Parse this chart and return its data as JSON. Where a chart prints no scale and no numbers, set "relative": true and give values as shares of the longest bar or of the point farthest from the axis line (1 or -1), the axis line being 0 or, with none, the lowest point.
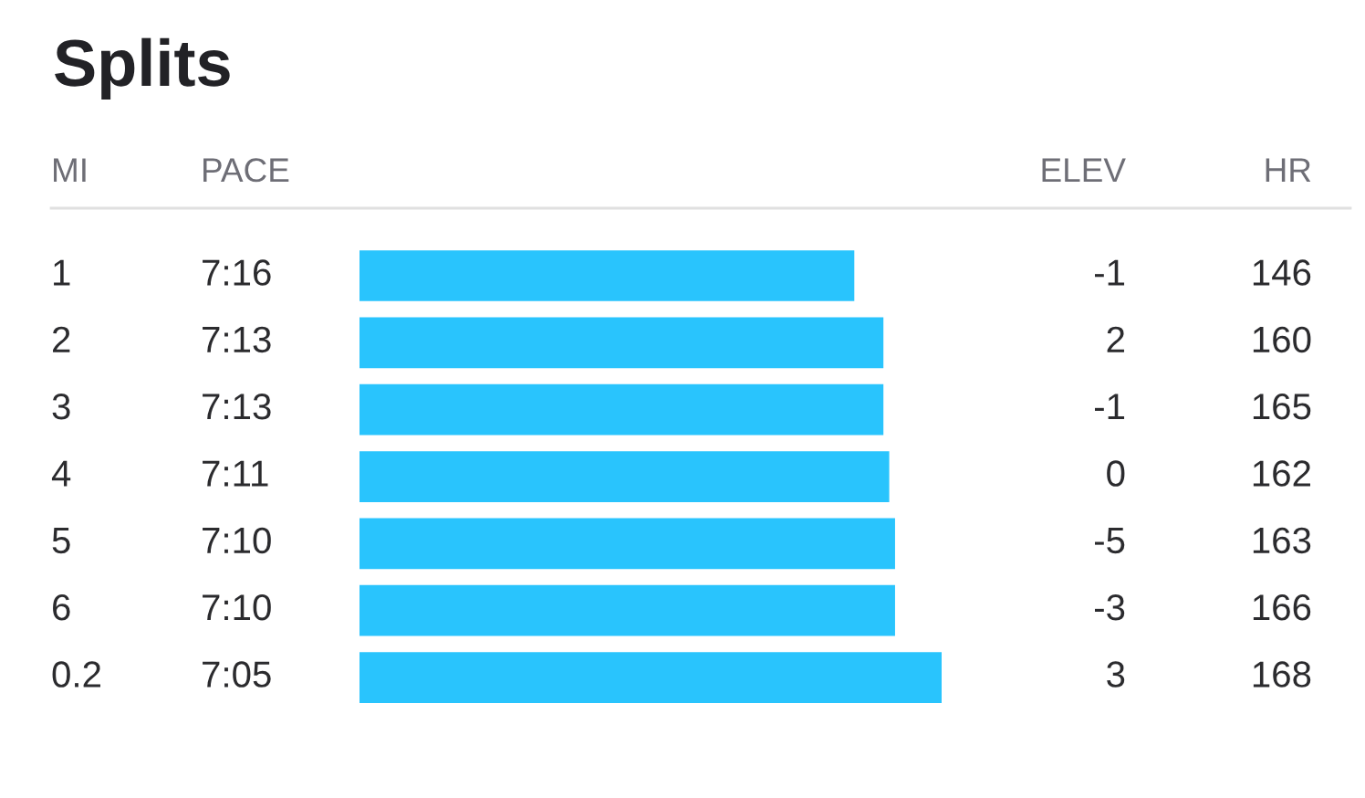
{
  "chart_data": [
    {
      "type": "bar",
      "orientation": "horizontal",
      "relative": true,
      "title": "Splits",
      "ylabel": "MI",
      "categories": [
        "1",
        "2",
        "3",
        "4",
        "5",
        "6",
        "0.2"
      ],
      "values": [
        0.85,
        0.9,
        0.9,
        0.91,
        0.92,
        0.92,
        1
      ],
      "color": "#29c4fd"
    },
    {
      "type": "other",
      "title": "PACE",
      "annotations": [
        "7:16",
        "7:13",
        "7:13",
        "7:11",
        "7:10",
        "7:10",
        "7:05"
      ]
    },
    {
      "type": "other",
      "title": "ELEV",
      "values": [
        -1,
        2,
        -1,
        0,
        -5,
        -3,
        3
      ],
      "data_labels": true
    },
    {
      "type": "other",
      "title": "HR",
      "values": [
        146,
        160,
        165,
        162,
        163,
        166,
        168
      ],
      "data_labels": true
    }
  ]
}
